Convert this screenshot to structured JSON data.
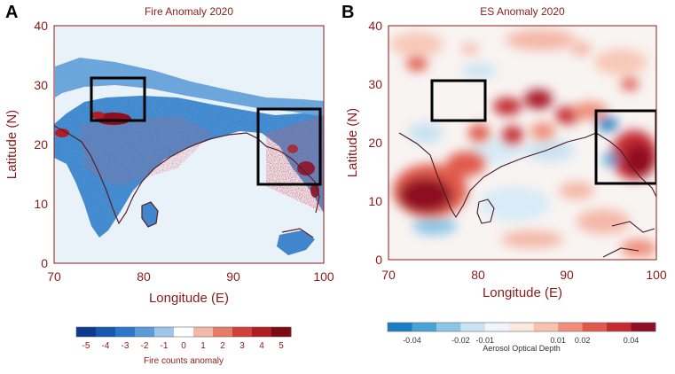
{
  "chart_data": [
    {
      "panel": "A",
      "type": "heatmap",
      "title": "Fire Anomaly 2020",
      "xlabel": "Longitude (E)",
      "ylabel": "Latitude (N)",
      "xlim": [
        70,
        100
      ],
      "ylim": [
        0,
        40
      ],
      "xticks": [
        70,
        80,
        90,
        100
      ],
      "yticks": [
        0,
        10,
        20,
        30,
        40
      ],
      "colorbar": {
        "label": "Fire counts anomaly",
        "ticks": [
          "-5",
          "-4",
          "-3",
          "-2",
          "-1",
          "0",
          "1",
          "2",
          "3",
          "4",
          "5"
        ],
        "colors": [
          "#0b3a8f",
          "#1659b0",
          "#2b78c9",
          "#5a9bd8",
          "#9dc6ea",
          "#ffffff",
          "#f4b8a8",
          "#e77b6a",
          "#d2403a",
          "#b01e24",
          "#7a0c14"
        ]
      },
      "boxes_deg": [
        {
          "lon": [
            74,
            80
          ],
          "lat": [
            24,
            31
          ]
        },
        {
          "lon": [
            93,
            100
          ],
          "lat": [
            13.5,
            26
          ]
        }
      ]
    },
    {
      "panel": "B",
      "type": "heatmap",
      "title": "ES Anomaly 2020",
      "xlabel": "Longitude (E)",
      "ylabel": "Latitude (N)",
      "xlim": [
        70,
        100
      ],
      "ylim": [
        0,
        40
      ],
      "xticks": [
        70,
        80,
        90,
        100
      ],
      "yticks": [
        0,
        10,
        20,
        30,
        40
      ],
      "colorbar": {
        "label": "Aerosol Optical Depth",
        "ticks": [
          "-0.04",
          "-0.02",
          "-0.01",
          "0.01",
          "0.02",
          "0.04"
        ],
        "colors": [
          "#1a7fc1",
          "#48a3d6",
          "#8cc6e6",
          "#c8e3f2",
          "#eef6fb",
          "#fbe8df",
          "#f7c2ae",
          "#ef8e79",
          "#e05a4b",
          "#c52b32",
          "#8e0e24"
        ]
      },
      "boxes_deg": [
        {
          "lon": [
            75,
            81
          ],
          "lat": [
            23.5,
            30.5
          ]
        },
        {
          "lon": [
            93,
            100
          ],
          "lat": [
            13,
            25.5
          ]
        }
      ],
      "hotspots": [
        {
          "lon": 75,
          "lat": 11,
          "value": 0.045
        },
        {
          "lon": 79,
          "lat": 16,
          "value": 0.03
        },
        {
          "lon": 83,
          "lat": 25.5,
          "value": 0.04
        },
        {
          "lon": 86.5,
          "lat": 27,
          "value": 0.042
        },
        {
          "lon": 84,
          "lat": 21.5,
          "value": 0.035
        },
        {
          "lon": 89.5,
          "lat": 24.5,
          "value": 0.03
        },
        {
          "lon": 97.5,
          "lat": 18.5,
          "value": 0.045
        },
        {
          "lon": 95,
          "lat": 24,
          "value": -0.02
        },
        {
          "lon": 71,
          "lat": 33,
          "value": 0.02
        }
      ]
    }
  ],
  "labels": {
    "panel_a": "A",
    "panel_b": "B"
  }
}
